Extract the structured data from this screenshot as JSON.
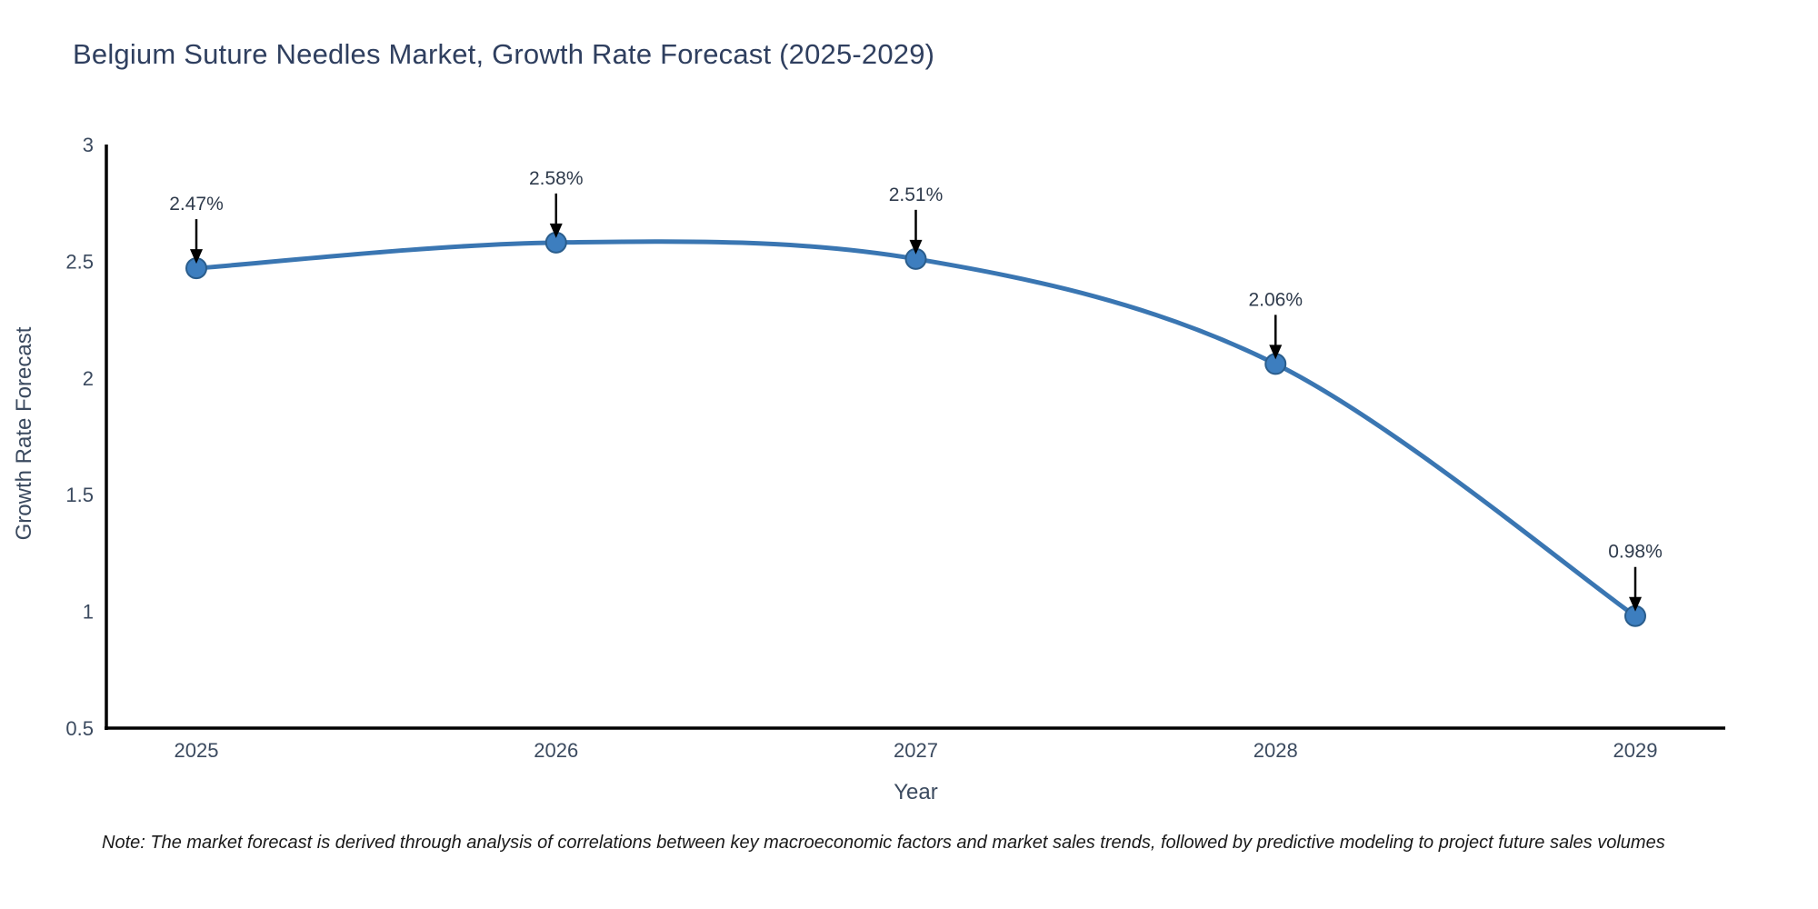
{
  "chart": {
    "note": "Note: The market forecast is derived through analysis of correlations between key macroeconomic factors and market sales trends, followed by predictive modeling to project future sales volumes"
  },
  "chart_data": {
    "type": "line",
    "title": "Belgium Suture Needles Market, Growth Rate Forecast (2025-2029)",
    "xlabel": "Year",
    "ylabel": "Growth Rate Forecast",
    "x": [
      2025,
      2026,
      2027,
      2028,
      2029
    ],
    "values": [
      2.47,
      2.58,
      2.51,
      2.06,
      0.98
    ],
    "point_labels": [
      "2.47%",
      "2.58%",
      "2.51%",
      "2.06%",
      "0.98%"
    ],
    "xticks": [
      "2025",
      "2026",
      "2027",
      "2028",
      "2029"
    ],
    "yticks": [
      0.5,
      1,
      1.5,
      2,
      2.5,
      3
    ],
    "ylim": [
      0.5,
      3
    ],
    "grid": false,
    "legend": "none",
    "line_shape": "spline",
    "annotations": "value labels with downward black arrows at each point",
    "colors": {
      "line": "#3a76b2",
      "marker_fill": "#3d7ebf",
      "marker_edge": "#2a5d8c",
      "annotation_text": "#2f3b4c",
      "annotation_arrow": "#000000",
      "axis_line": "#000000",
      "title_text": "#2f3f5f",
      "tick_text": "#3b4a5f",
      "note_text": "#1a1a1a"
    }
  }
}
